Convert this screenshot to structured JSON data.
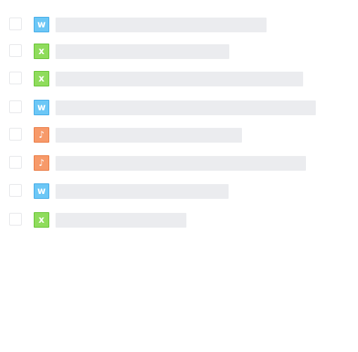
{
  "file_list": {
    "rows": [
      {
        "type": "word",
        "glyph": "w",
        "color": "#6cc7f6",
        "border": "#3ea8e6"
      },
      {
        "type": "excel",
        "glyph": "x",
        "color": "#8fdc5c",
        "border": "#62c12e"
      },
      {
        "type": "excel",
        "glyph": "x",
        "color": "#8fdc5c",
        "border": "#62c12e"
      },
      {
        "type": "word",
        "glyph": "w",
        "color": "#6cc7f6",
        "border": "#3ea8e6"
      },
      {
        "type": "audio",
        "glyph": "♪",
        "color": "#f79a6a",
        "border": "#e8763d"
      },
      {
        "type": "audio",
        "glyph": "♪",
        "color": "#f79a6a",
        "border": "#e8763d"
      },
      {
        "type": "word",
        "glyph": "w",
        "color": "#6cc7f6",
        "border": "#3ea8e6"
      },
      {
        "type": "excel",
        "glyph": "x",
        "color": "#8fdc5c",
        "border": "#62c12e"
      }
    ]
  }
}
